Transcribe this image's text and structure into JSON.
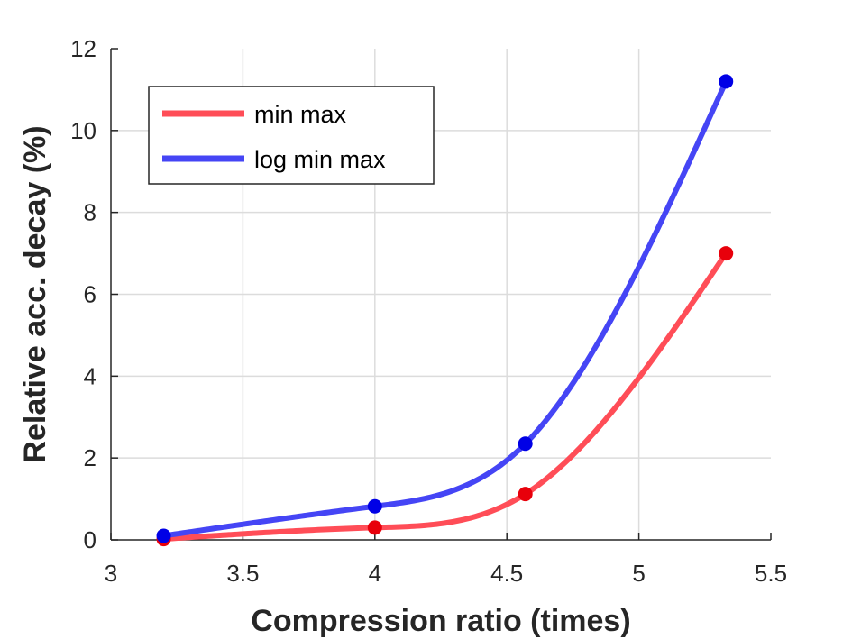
{
  "chart_data": {
    "type": "line",
    "xlabel": "Compression ratio (times)",
    "ylabel": "Relative acc. decay (%)",
    "xlim": [
      3,
      5.5
    ],
    "ylim": [
      0,
      12
    ],
    "xticks": [
      "3",
      "3.5",
      "4",
      "4.5",
      "5",
      "5.5"
    ],
    "yticks": [
      "0",
      "2",
      "4",
      "6",
      "8",
      "10",
      "12"
    ],
    "grid": true,
    "smooth": true,
    "legend_position": "top-left",
    "series": [
      {
        "name": "min max",
        "color": "#ff4d57",
        "x": [
          3.2,
          4.0,
          4.57,
          5.33
        ],
        "y": [
          0.02,
          0.3,
          1.12,
          7.0
        ]
      },
      {
        "name": "log min max",
        "color": "#4545f5",
        "x": [
          3.2,
          4.0,
          4.57,
          5.33
        ],
        "y": [
          0.1,
          0.82,
          2.35,
          11.2
        ]
      }
    ]
  }
}
